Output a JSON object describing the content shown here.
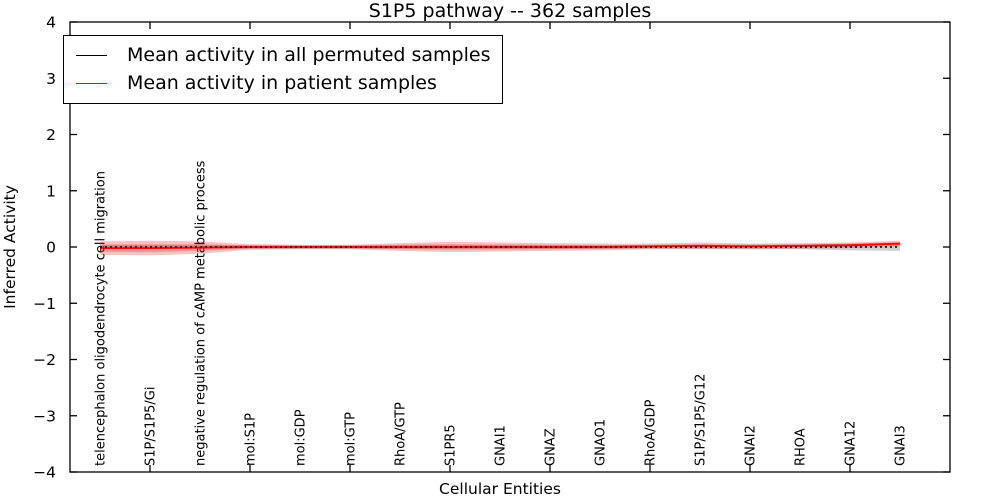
{
  "title": "S1P5 pathway -- 362 samples",
  "axes": {
    "xlabel": "Cellular Entities",
    "ylabel": "Inferred Activity"
  },
  "legend": {
    "entries": [
      {
        "label": "Mean activity in all permuted samples",
        "color": "#000000"
      },
      {
        "label": "Mean activity in patient samples",
        "color": "#ff0000"
      }
    ]
  },
  "chart_data": {
    "type": "line",
    "title": "S1P5 pathway -- 362 samples",
    "xlabel": "Cellular Entities",
    "ylabel": "Inferred Activity",
    "ylim": [
      -4,
      4
    ],
    "grid": false,
    "legend_position": "upper left",
    "x_major_tick_at_every_other_category": true,
    "yticks": [
      {
        "value": 4,
        "label": "4"
      },
      {
        "value": 3,
        "label": "3"
      },
      {
        "value": 2,
        "label": "2"
      },
      {
        "value": 1,
        "label": "1"
      },
      {
        "value": 0,
        "label": "0"
      },
      {
        "value": -1,
        "label": "−1"
      },
      {
        "value": -2,
        "label": "−2"
      },
      {
        "value": -3,
        "label": "−3"
      },
      {
        "value": -4,
        "label": "−4"
      }
    ],
    "categories": [
      "telencephalon oligodendrocyte cell migration",
      "S1P/S1P5/Gi",
      "negative regulation of cAMP metabolic process",
      "mol:S1P",
      "mol:GDP",
      "mol:GTP",
      "RhoA/GTP",
      "S1PR5",
      "GNAI1",
      "GNAZ",
      "GNAO1",
      "RhoA/GDP",
      "S1P/S1P5/G12",
      "GNAI2",
      "RHOA",
      "GNA12",
      "GNAI3"
    ],
    "series": [
      {
        "name": "Mean activity in all permuted samples",
        "color": "#000000",
        "line_style": "dotted",
        "band_color": "rgba(90,90,90,0.28)",
        "values": [
          0,
          0,
          0,
          0,
          0,
          0,
          0,
          0,
          0,
          0,
          0,
          0,
          0,
          0,
          0,
          0,
          0
        ],
        "band_half_width": [
          0.03,
          0.03,
          0.03,
          0.03,
          0.03,
          0.03,
          0.03,
          0.03,
          0.03,
          0.03,
          0.03,
          0.03,
          0.03,
          0.04,
          0.04,
          0.06,
          0.07
        ]
      },
      {
        "name": "Mean activity in patient samples",
        "color": "#ff0000",
        "line_style": "solid",
        "band_color": "rgba(225,30,30,0.27)",
        "values": [
          -0.02,
          -0.02,
          -0.01,
          0,
          0,
          0,
          0,
          0,
          0,
          0,
          0,
          0.01,
          0.02,
          0.01,
          0.02,
          0.03,
          0.06
        ],
        "band_half_width": [
          0.12,
          0.13,
          0.11,
          0.05,
          0.04,
          0.04,
          0.07,
          0.09,
          0.08,
          0.07,
          0.06,
          0.05,
          0.06,
          0.05,
          0.05,
          0.05,
          0.05
        ]
      }
    ]
  }
}
